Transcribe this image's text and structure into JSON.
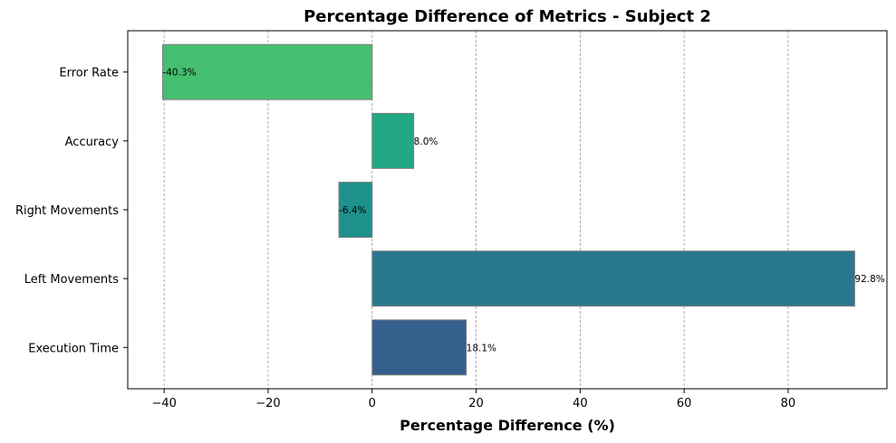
{
  "chart_data": {
    "type": "bar",
    "orientation": "horizontal",
    "title": "Percentage Difference of Metrics - Subject 2",
    "xlabel": "Percentage Difference (%)",
    "ylabel": "",
    "categories": [
      "Execution Time",
      "Left Movements",
      "Right Movements",
      "Accuracy",
      "Error Rate"
    ],
    "values": [
      18.1,
      92.8,
      -6.4,
      8.0,
      -40.3
    ],
    "value_labels": [
      "18.1%",
      "92.8%",
      "-6.4%",
      "8.0%",
      "-40.3%"
    ],
    "colors": [
      "#355f8d",
      "#2a788e",
      "#1f918b",
      "#22a884",
      "#44bf70"
    ],
    "xlim": [
      -47,
      99
    ],
    "xticks": [
      -40,
      -20,
      0,
      20,
      40,
      60,
      80
    ],
    "xtick_labels": [
      "−40",
      "−20",
      "0",
      "20",
      "40",
      "60",
      "80"
    ],
    "grid": "x-dashed",
    "legend": "none"
  }
}
